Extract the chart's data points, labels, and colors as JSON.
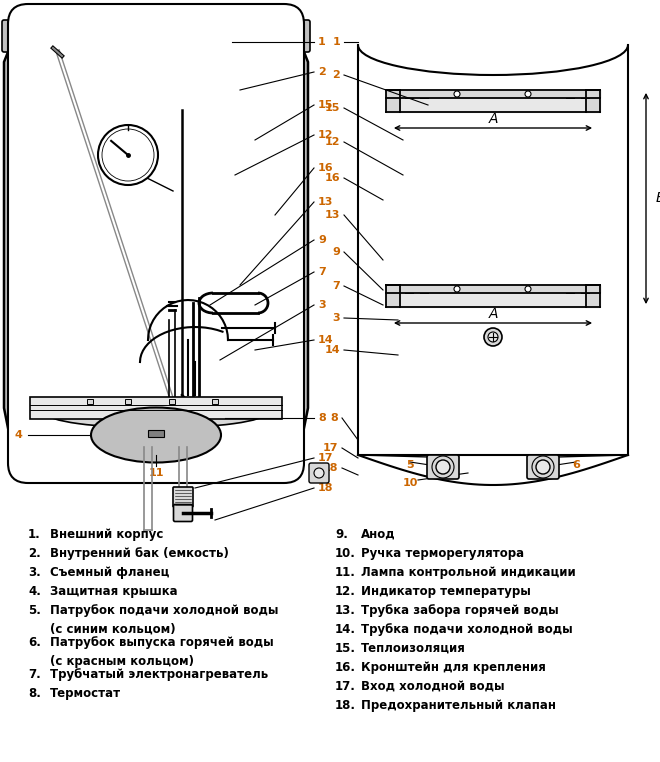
{
  "bg_color": "#ffffff",
  "lc": "#000000",
  "gray_shell": "#c0c0c0",
  "gray_mid": "#d8d8d8",
  "gray_light": "#e8e8e8",
  "nc": "#cc6600",
  "legend_left": [
    [
      "1.",
      "Внешний корпус"
    ],
    [
      "2.",
      "Внутренний бак (емкость)"
    ],
    [
      "3.",
      "Съемный фланец"
    ],
    [
      "4.",
      "Защитная крышка"
    ],
    [
      "5.",
      "Патрубок подачи холодной воды",
      "(с синим кольцом)"
    ],
    [
      "6.",
      "Патрубок выпуска горячей воды",
      "(с красным кольцом)"
    ],
    [
      "7.",
      "Трубчатый электронагреватель"
    ],
    [
      "8.",
      "Термостат"
    ]
  ],
  "legend_right": [
    [
      "9.",
      "Анод"
    ],
    [
      "10.",
      "Ручка терморегулятора"
    ],
    [
      "11.",
      "Лампа контрольной индикации"
    ],
    [
      "12.",
      "Индикатор температуры"
    ],
    [
      "13.",
      "Трубка забора горячей воды"
    ],
    [
      "14.",
      "Трубка подачи холодной воды"
    ],
    [
      "15.",
      "Теплоизоляция"
    ],
    [
      "16.",
      "Кронштейн для крепления"
    ],
    [
      "17.",
      "Вход холодной воды"
    ],
    [
      "18.",
      "Предохранительный клапан"
    ]
  ]
}
